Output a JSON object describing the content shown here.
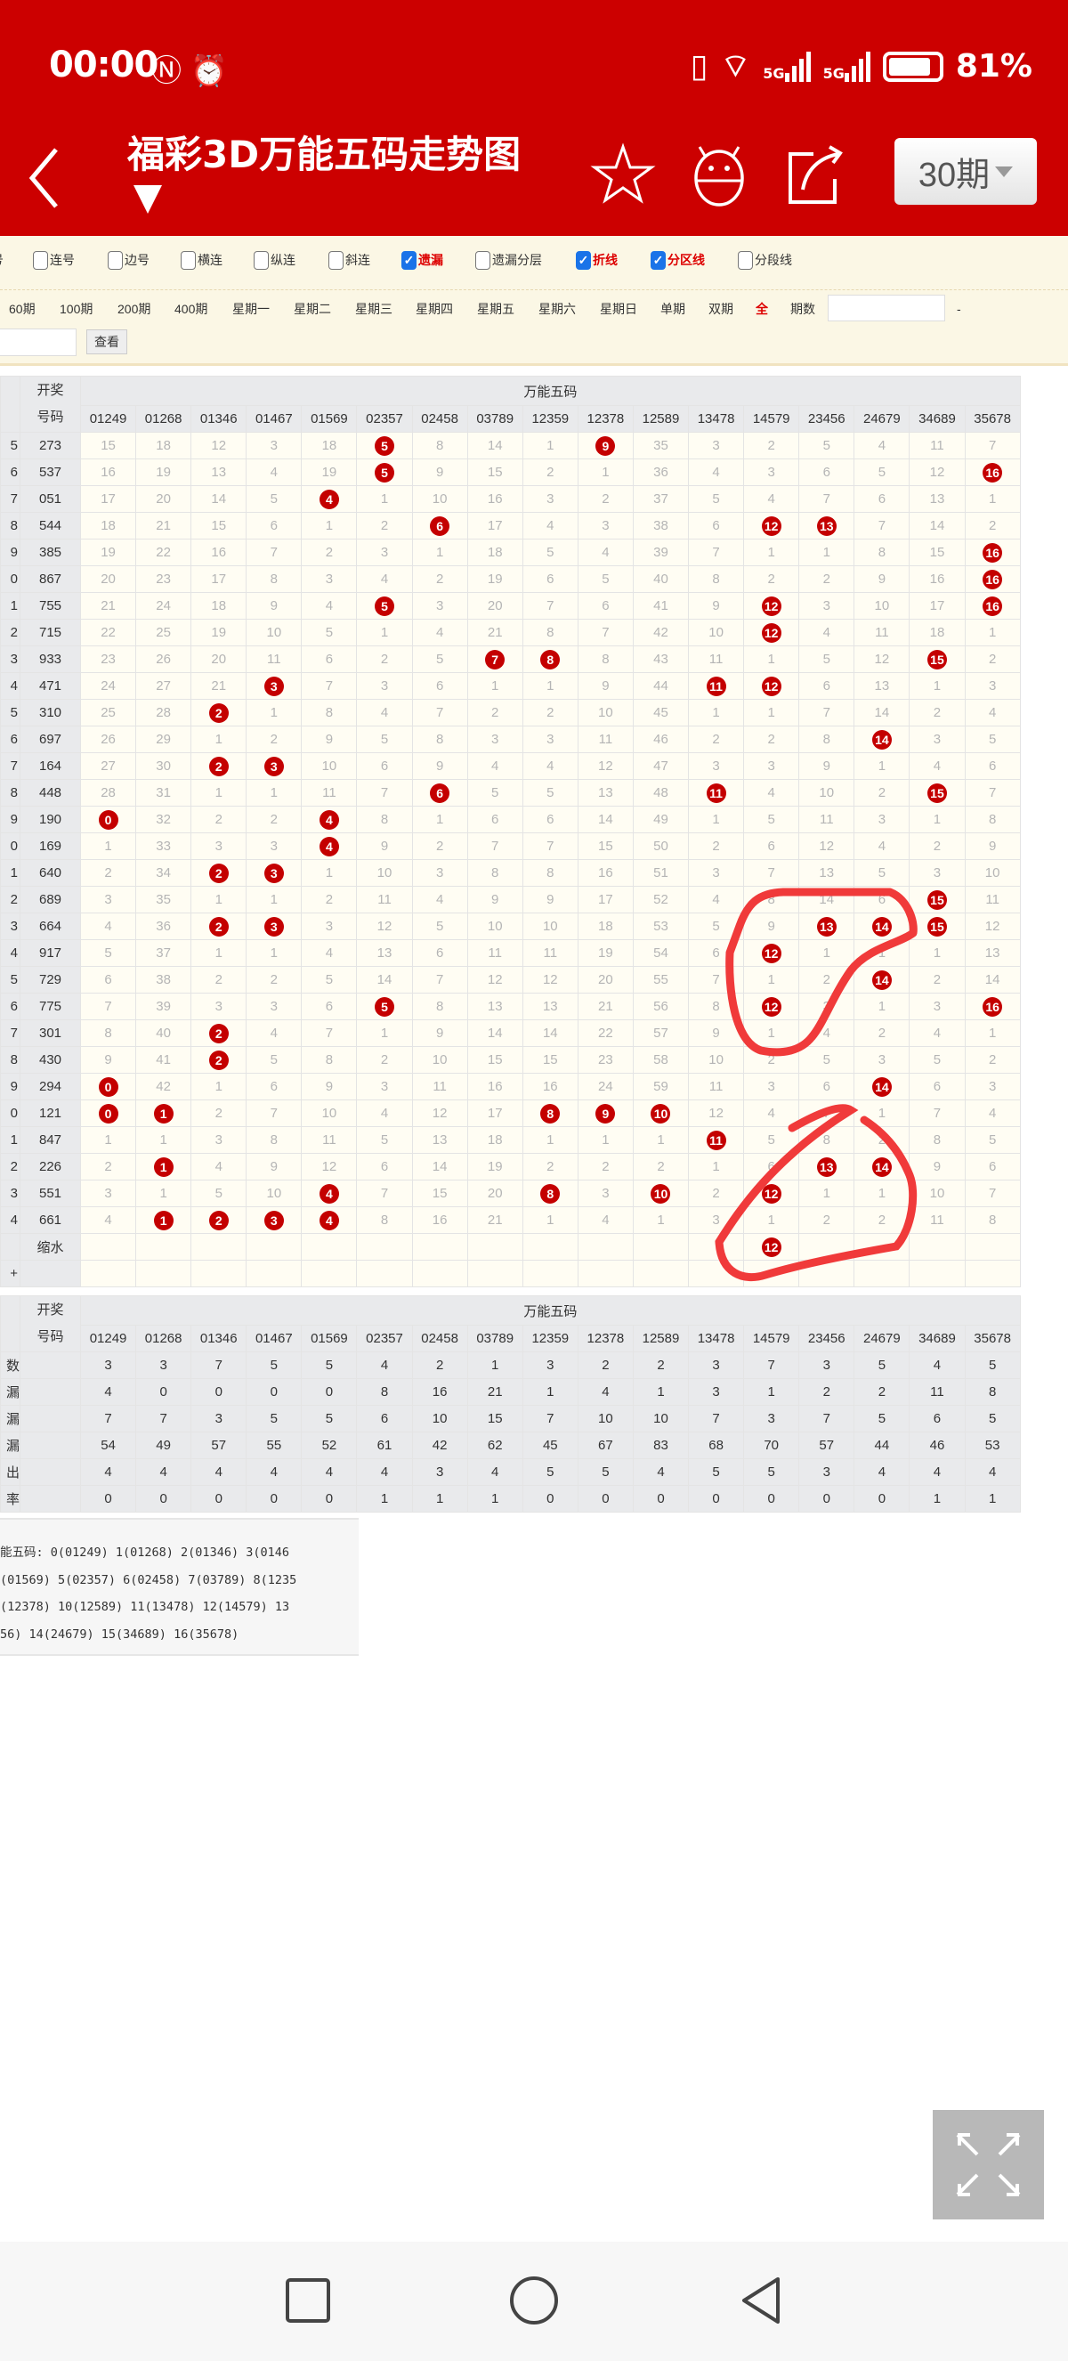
{
  "status_bar": {
    "time": "00:00",
    "battery": "81%",
    "net1": "5G",
    "net2": "5G",
    "wifi_badge": "6"
  },
  "header": {
    "title": "福彩3D万能五码走势图",
    "period_select": "30期",
    "icons": [
      "back-icon",
      "star-icon",
      "android-icon",
      "share-icon"
    ]
  },
  "options": [
    {
      "label": "号",
      "checked": null
    },
    {
      "label": "连号",
      "checked": false
    },
    {
      "label": "边号",
      "checked": false
    },
    {
      "label": "横连",
      "checked": false
    },
    {
      "label": "纵连",
      "checked": false
    },
    {
      "label": "斜连",
      "checked": false
    },
    {
      "label": "遗漏",
      "checked": true
    },
    {
      "label": "遗漏分层",
      "checked": false
    },
    {
      "label": "折线",
      "checked": true
    },
    {
      "label": "分区线",
      "checked": true
    },
    {
      "label": "分段线",
      "checked": false
    }
  ],
  "periods": [
    "60期",
    "100期",
    "200期",
    "400期",
    "星期一",
    "星期二",
    "星期三",
    "星期四",
    "星期五",
    "星期六",
    "星期日",
    "单期",
    "双期",
    "全"
  ],
  "period_count_label": "期数",
  "range_dash": "-",
  "range_from": "",
  "range_to": "",
  "view_button": "查看",
  "table": {
    "draw_header": [
      "开奖",
      "号码"
    ],
    "group_header": "万能五码",
    "columns": [
      "01249",
      "01268",
      "01346",
      "01467",
      "01569",
      "02357",
      "02458",
      "03789",
      "12359",
      "12378",
      "12589",
      "13478",
      "14579",
      "23456",
      "24679",
      "34689",
      "35678"
    ],
    "rows": [
      {
        "p": "5",
        "d": "273",
        "v": [
          15,
          18,
          12,
          3,
          18,
          5,
          8,
          14,
          1,
          9,
          35,
          3,
          2,
          5,
          4,
          11,
          7
        ],
        "h": [
          5,
          9
        ]
      },
      {
        "p": "6",
        "d": "537",
        "v": [
          16,
          19,
          13,
          4,
          19,
          5,
          9,
          15,
          2,
          1,
          36,
          4,
          3,
          6,
          5,
          12,
          16
        ],
        "h": [
          5,
          16
        ]
      },
      {
        "p": "7",
        "d": "051",
        "v": [
          17,
          20,
          14,
          5,
          4,
          1,
          10,
          16,
          3,
          2,
          37,
          5,
          4,
          7,
          6,
          13,
          1
        ],
        "h": [
          4
        ]
      },
      {
        "p": "8",
        "d": "544",
        "v": [
          18,
          21,
          15,
          6,
          1,
          2,
          6,
          17,
          4,
          3,
          38,
          6,
          12,
          13,
          7,
          14,
          2
        ],
        "h": [
          6,
          12,
          13
        ]
      },
      {
        "p": "9",
        "d": "385",
        "v": [
          19,
          22,
          16,
          7,
          2,
          3,
          1,
          18,
          5,
          4,
          39,
          7,
          1,
          1,
          8,
          15,
          16
        ],
        "h": [
          16
        ]
      },
      {
        "p": "0",
        "d": "867",
        "v": [
          20,
          23,
          17,
          8,
          3,
          4,
          2,
          19,
          6,
          5,
          40,
          8,
          2,
          2,
          9,
          16,
          16
        ],
        "h": [
          16
        ]
      },
      {
        "p": "1",
        "d": "755",
        "v": [
          21,
          24,
          18,
          9,
          4,
          5,
          3,
          20,
          7,
          6,
          41,
          9,
          12,
          3,
          10,
          17,
          16
        ],
        "h": [
          5,
          12,
          16
        ]
      },
      {
        "p": "2",
        "d": "715",
        "v": [
          22,
          25,
          19,
          10,
          5,
          1,
          4,
          21,
          8,
          7,
          42,
          10,
          12,
          4,
          11,
          18,
          1
        ],
        "h": [
          12
        ]
      },
      {
        "p": "3",
        "d": "933",
        "v": [
          23,
          26,
          20,
          11,
          6,
          2,
          5,
          7,
          8,
          8,
          43,
          11,
          1,
          5,
          12,
          15,
          2
        ],
        "h": [
          7,
          8,
          15
        ]
      },
      {
        "p": "4",
        "d": "471",
        "v": [
          24,
          27,
          21,
          3,
          7,
          3,
          6,
          1,
          1,
          9,
          44,
          11,
          12,
          6,
          13,
          1,
          3
        ],
        "h": [
          3,
          11,
          12
        ]
      },
      {
        "p": "5",
        "d": "310",
        "v": [
          25,
          28,
          2,
          1,
          8,
          4,
          7,
          2,
          2,
          10,
          45,
          1,
          1,
          7,
          14,
          2,
          4
        ],
        "h": [
          2
        ]
      },
      {
        "p": "6",
        "d": "697",
        "v": [
          26,
          29,
          1,
          2,
          9,
          5,
          8,
          3,
          3,
          11,
          46,
          2,
          2,
          8,
          14,
          3,
          5
        ],
        "h": [
          14
        ]
      },
      {
        "p": "7",
        "d": "164",
        "v": [
          27,
          30,
          2,
          3,
          10,
          6,
          9,
          4,
          4,
          12,
          47,
          3,
          3,
          9,
          1,
          4,
          6
        ],
        "h": [
          2,
          3
        ]
      },
      {
        "p": "8",
        "d": "448",
        "v": [
          28,
          31,
          1,
          1,
          11,
          7,
          6,
          5,
          5,
          13,
          48,
          11,
          4,
          10,
          2,
          15,
          7
        ],
        "h": [
          6,
          11,
          15
        ]
      },
      {
        "p": "9",
        "d": "190",
        "v": [
          0,
          32,
          2,
          2,
          4,
          8,
          1,
          6,
          6,
          14,
          49,
          1,
          5,
          11,
          3,
          1,
          8
        ],
        "h": [
          0,
          4
        ]
      },
      {
        "p": "0",
        "d": "169",
        "v": [
          1,
          33,
          3,
          3,
          4,
          9,
          2,
          7,
          7,
          15,
          50,
          2,
          6,
          12,
          4,
          2,
          9
        ],
        "h": [
          4
        ]
      },
      {
        "p": "1",
        "d": "640",
        "v": [
          2,
          34,
          2,
          3,
          1,
          10,
          3,
          8,
          8,
          16,
          51,
          3,
          7,
          13,
          5,
          3,
          10
        ],
        "h": [
          2,
          3
        ]
      },
      {
        "p": "2",
        "d": "689",
        "v": [
          3,
          35,
          1,
          1,
          2,
          11,
          4,
          9,
          9,
          17,
          52,
          4,
          8,
          14,
          6,
          15,
          11
        ],
        "h": [
          15
        ]
      },
      {
        "p": "3",
        "d": "664",
        "v": [
          4,
          36,
          2,
          3,
          3,
          12,
          5,
          10,
          10,
          18,
          53,
          5,
          9,
          13,
          14,
          15,
          12
        ],
        "h": [
          2,
          3,
          13,
          14,
          15
        ]
      },
      {
        "p": "4",
        "d": "917",
        "v": [
          5,
          37,
          1,
          1,
          4,
          13,
          6,
          11,
          11,
          19,
          54,
          6,
          12,
          1,
          1,
          1,
          13
        ],
        "h": [
          12
        ]
      },
      {
        "p": "5",
        "d": "729",
        "v": [
          6,
          38,
          2,
          2,
          5,
          14,
          7,
          12,
          12,
          20,
          55,
          7,
          1,
          2,
          14,
          2,
          14
        ],
        "h": [
          14
        ]
      },
      {
        "p": "6",
        "d": "775",
        "v": [
          7,
          39,
          3,
          3,
          6,
          5,
          8,
          13,
          13,
          21,
          56,
          8,
          12,
          3,
          1,
          3,
          16
        ],
        "h": [
          5,
          12,
          16
        ]
      },
      {
        "p": "7",
        "d": "301",
        "v": [
          8,
          40,
          2,
          4,
          7,
          1,
          9,
          14,
          14,
          22,
          57,
          9,
          1,
          4,
          2,
          4,
          1
        ],
        "h": [
          2
        ]
      },
      {
        "p": "8",
        "d": "430",
        "v": [
          9,
          41,
          2,
          5,
          8,
          2,
          10,
          15,
          15,
          23,
          58,
          10,
          2,
          5,
          3,
          5,
          2
        ],
        "h": [
          2
        ]
      },
      {
        "p": "9",
        "d": "294",
        "v": [
          0,
          42,
          1,
          6,
          9,
          3,
          11,
          16,
          16,
          24,
          59,
          11,
          3,
          6,
          14,
          6,
          3
        ],
        "h": [
          0,
          14
        ]
      },
      {
        "p": "0",
        "d": "121",
        "v": [
          0,
          1,
          2,
          7,
          10,
          4,
          12,
          17,
          8,
          9,
          10,
          12,
          4,
          7,
          1,
          7,
          4
        ],
        "h": [
          0,
          1,
          8,
          9,
          10
        ]
      },
      {
        "p": "1",
        "d": "847",
        "v": [
          1,
          1,
          3,
          8,
          11,
          5,
          13,
          18,
          1,
          1,
          1,
          11,
          5,
          8,
          2,
          8,
          5
        ],
        "h": [
          11
        ]
      },
      {
        "p": "2",
        "d": "226",
        "v": [
          2,
          1,
          4,
          9,
          12,
          6,
          14,
          19,
          2,
          2,
          2,
          1,
          6,
          13,
          14,
          9,
          6
        ],
        "h": [
          1,
          13,
          14
        ]
      },
      {
        "p": "3",
        "d": "551",
        "v": [
          3,
          1,
          5,
          10,
          4,
          7,
          15,
          20,
          8,
          3,
          10,
          2,
          12,
          1,
          1,
          10,
          7
        ],
        "h": [
          4,
          8,
          10,
          12
        ]
      },
      {
        "p": "4",
        "d": "661",
        "v": [
          4,
          1,
          2,
          3,
          4,
          8,
          16,
          21,
          1,
          4,
          1,
          3,
          1,
          2,
          2,
          11,
          8
        ],
        "h": [
          1,
          2,
          3,
          4
        ]
      }
    ],
    "shrink_row": {
      "label": "缩水",
      "col": 12,
      "value": "12"
    },
    "blank_row_mark": "+",
    "stats": [
      {
        "label": "数",
        "v": [
          3,
          3,
          7,
          5,
          5,
          4,
          2,
          1,
          3,
          2,
          2,
          3,
          7,
          3,
          5,
          4,
          5
        ]
      },
      {
        "label": "漏",
        "v": [
          4,
          0,
          0,
          0,
          0,
          8,
          16,
          21,
          1,
          4,
          1,
          3,
          1,
          2,
          2,
          11,
          8
        ]
      },
      {
        "label": "漏",
        "v": [
          7,
          7,
          3,
          5,
          5,
          6,
          10,
          15,
          7,
          10,
          10,
          7,
          3,
          7,
          5,
          6,
          5
        ]
      },
      {
        "label": "漏",
        "v": [
          54,
          49,
          57,
          55,
          52,
          61,
          42,
          62,
          45,
          67,
          83,
          68,
          70,
          57,
          44,
          46,
          53
        ]
      },
      {
        "label": "出",
        "v": [
          4,
          4,
          4,
          4,
          4,
          4,
          3,
          4,
          5,
          5,
          4,
          5,
          5,
          3,
          4,
          4,
          4
        ]
      },
      {
        "label": "率",
        "v": [
          0,
          0,
          0,
          0,
          0,
          1,
          1,
          1,
          0,
          0,
          0,
          0,
          0,
          0,
          0,
          1,
          1
        ]
      }
    ]
  },
  "legend_lines": [
    "能五码: 0(01249) 1(01268) 2(01346) 3(0146",
    "(01569) 5(02357) 6(02458) 7(03789) 8(1235",
    "(12378) 10(12589) 11(13478) 12(14579) 13",
    "56) 14(24679) 15(34689) 16(35678)"
  ],
  "colors": {
    "brand": "#cc0000",
    "ball": "#c40000",
    "annotation": "#f03a3a",
    "checkbox": "#1a73e8"
  }
}
